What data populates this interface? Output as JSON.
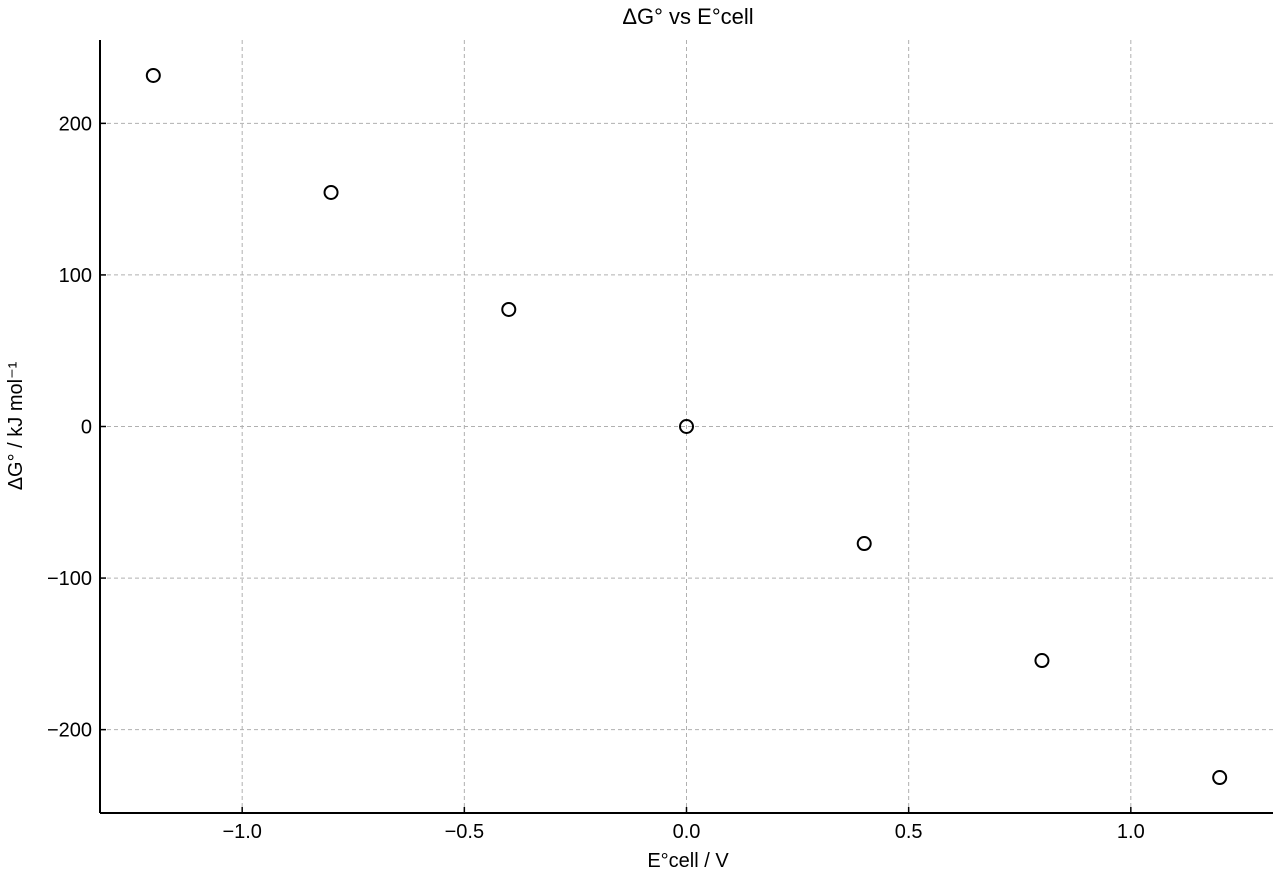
{
  "chart_data": {
    "type": "scatter",
    "title": "ΔG° vs E°cell",
    "xlabel": "E°cell / V",
    "ylabel": "ΔG° / kJ mol⁻¹",
    "xlim": [
      -1.32,
      1.32
    ],
    "ylim": [
      -255,
      255
    ],
    "xticks": [
      -1.0,
      -0.5,
      0.0,
      0.5,
      1.0
    ],
    "xtick_labels": [
      "−1.0",
      "−0.5",
      "0.0",
      "0.5",
      "1.0"
    ],
    "yticks": [
      -200,
      -100,
      0,
      100,
      200
    ],
    "ytick_labels": [
      "−200",
      "−100",
      "0",
      "100",
      "200"
    ],
    "grid": true,
    "marker": "open-circle",
    "colors": {
      "marker": "#000000",
      "grid": "#b0b0b0",
      "axis": "#000000"
    },
    "series": [
      {
        "x": [
          -1.2,
          -0.8,
          -0.4,
          0.0,
          0.4,
          0.8,
          1.2
        ],
        "y": [
          231.6,
          154.4,
          77.2,
          0.0,
          -77.2,
          -154.4,
          -231.6
        ]
      }
    ]
  }
}
